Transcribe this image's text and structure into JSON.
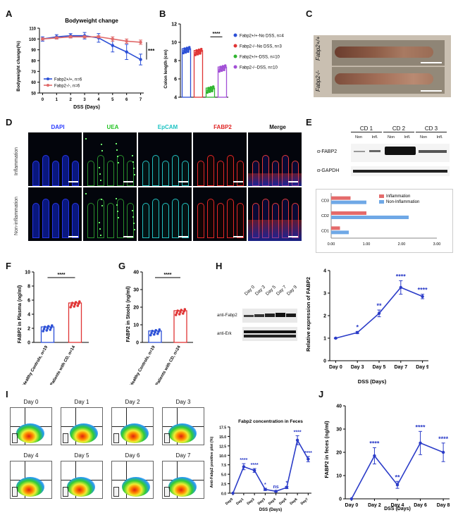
{
  "panels": {
    "A": {
      "label": "A",
      "chart_data": {
        "type": "line",
        "title": "Bodyweight change",
        "xlabel": "DSS (Days)",
        "ylabel": "Bodyweight change(%)",
        "x": [
          0,
          1,
          2,
          3,
          4,
          5,
          6,
          7
        ],
        "ylim": [
          50,
          110
        ],
        "yticks": [
          "50",
          "60",
          "70",
          "80",
          "90",
          "100",
          "110"
        ],
        "xticks": [
          "0",
          "1",
          "2",
          "3",
          "4",
          "5",
          "6",
          "7"
        ],
        "series": [
          {
            "name": "Fabp2+/+, n=6",
            "color": "#2b4fd6",
            "values": [
              100,
              102,
              103,
              103,
              101,
              94,
              88,
              81
            ],
            "err": [
              2,
              2,
              2,
              3,
              4,
              6,
              7,
              5
            ]
          },
          {
            "name": "Fabp2-/-, n=6",
            "color": "#e06a6a",
            "values": [
              100,
              101,
              102,
              102,
              102,
              100,
              98,
              97
            ],
            "err": [
              1,
              1,
              1,
              1,
              1,
              2,
              2,
              2
            ]
          }
        ],
        "sig": "***",
        "legend": [
          "Fabp2+/+, n=6",
          "Fabp2-/-, n=6"
        ]
      }
    },
    "B": {
      "label": "B",
      "chart_data": {
        "type": "bar",
        "ylabel": "Colon length (cm)",
        "ylim": [
          4,
          12
        ],
        "yticks": [
          "4",
          "6",
          "8",
          "10",
          "12"
        ],
        "categories": [
          "Fabp2+/+-No DSS",
          "Fabp2-/--No DSS",
          "Fabp2+/+-DSS",
          "Fabp2-/--DSS"
        ],
        "values": [
          9.3,
          9.1,
          5.0,
          7.3
        ],
        "colors": [
          "#2b4fd6",
          "#e03434",
          "#2fb52f",
          "#a24fd6"
        ],
        "sig": "****",
        "legend": [
          "Fabp2+/+-No DSS, n=4",
          "Fabp2-/--No DSS, n=3",
          "Fabp2+/+-DSS, n=10",
          "Fabp2-/--DSS, n=10"
        ]
      }
    },
    "C": {
      "label": "C",
      "rows": [
        "Fabp2+/+",
        "Fabp2-/-"
      ]
    },
    "D": {
      "label": "D",
      "columns": [
        {
          "name": "DAPI",
          "color": "#2b3cff"
        },
        {
          "name": "UEA",
          "color": "#22c322"
        },
        {
          "name": "EpCAM",
          "color": "#1fc4c4"
        },
        {
          "name": "FABP2",
          "color": "#e02424"
        },
        {
          "name": "Merge",
          "color": "#111111"
        }
      ],
      "rows": [
        "Inflammation",
        "Non-inflammation"
      ]
    },
    "E": {
      "label": "E",
      "groups": [
        "CD 1",
        "CD 2",
        "CD 3"
      ],
      "lanes": [
        "Non",
        "Infl.",
        "Non",
        "Infl.",
        "Non",
        "Infl."
      ],
      "bands": [
        "α-FABP2",
        "α-GAPDH"
      ],
      "chart_data": {
        "type": "bar",
        "orientation": "horizontal",
        "categories": [
          "CD3",
          "CD2",
          "CD1"
        ],
        "series": [
          {
            "name": "Inflammation",
            "color": "#e46b6b",
            "values": [
              0.55,
              1.0,
              0.25
            ]
          },
          {
            "name": "Non-Inflammation",
            "color": "#6fa8e6",
            "values": [
              1.0,
              2.2,
              0.5
            ]
          }
        ],
        "xlim": [
          0,
          3
        ],
        "xticks": [
          "0.00",
          "1.00",
          "2.00",
          "3.00"
        ]
      }
    },
    "F": {
      "label": "F",
      "chart_data": {
        "type": "bar",
        "ylabel": "FABP2 in Plasma (ng/ml)",
        "ylim": [
          0,
          10
        ],
        "yticks": [
          "0",
          "2",
          "4",
          "6",
          "8",
          "10"
        ],
        "categories": [
          "Healthy Controls, n=19",
          "Patients with CD, n=14"
        ],
        "values": [
          2.2,
          5.6
        ],
        "colors": [
          "#2b4fd6",
          "#e03434"
        ],
        "sig": "****"
      }
    },
    "G": {
      "label": "G",
      "chart_data": {
        "type": "bar",
        "ylabel": "FABP2 in Stools (ng/ml)",
        "ylim": [
          0,
          40
        ],
        "yticks": [
          "0",
          "10",
          "20",
          "30",
          "40"
        ],
        "categories": [
          "Healthy Controls, n=19",
          "Patients with CD, n=24"
        ],
        "values": [
          6.5,
          18
        ],
        "colors": [
          "#2b4fd6",
          "#e03434"
        ],
        "sig": "****"
      }
    },
    "H": {
      "label": "H",
      "lanes": [
        "Day 0",
        "Day 3",
        "Day 5",
        "Day 7",
        "Day 9"
      ],
      "bands": [
        "anti-Fabp2",
        "anti-Erk"
      ],
      "chart_data": {
        "type": "line",
        "ylabel": "Relative expression of FABP2",
        "xlabel": "DSS (Days)",
        "categories": [
          "Day 0",
          "Day 3",
          "Day 5",
          "Day 7",
          "Day 9"
        ],
        "values": [
          1.0,
          1.25,
          2.1,
          3.25,
          2.85
        ],
        "err": [
          0.02,
          0.05,
          0.15,
          0.3,
          0.1
        ],
        "ylim": [
          0,
          4
        ],
        "yticks": [
          "0",
          "1",
          "2",
          "3",
          "4"
        ],
        "sig": [
          "",
          "*",
          "**",
          "****",
          "****"
        ],
        "color": "#2b3cc8"
      }
    },
    "I": {
      "label": "I",
      "plots": [
        "Day 0",
        "Day 1",
        "Day 2",
        "Day 3",
        "Day 4",
        "Day 5",
        "Day 6",
        "Day 7"
      ],
      "chart_data": {
        "type": "line",
        "title": "Fabp2 concentration in Feces",
        "ylabel": "Anti-Fabp2 positive plot (%)",
        "xlabel": "DSS (Days)",
        "categories": [
          "Day0",
          "Day1",
          "Day2",
          "Day3",
          "Day4",
          "Day5",
          "Day6",
          "Day7"
        ],
        "values": [
          0,
          7.0,
          6.0,
          1.0,
          0.5,
          1.5,
          14.0,
          9.0
        ],
        "err": [
          0,
          0.8,
          0.5,
          0.3,
          0.2,
          0.3,
          1.2,
          0.7
        ],
        "ylim": [
          0,
          17.5
        ],
        "yticks": [
          "0.0",
          "2.5",
          "5.0",
          "7.5",
          "10.0",
          "12.5",
          "15.0",
          "17.5"
        ],
        "sig": [
          "",
          "****",
          "****",
          "*",
          "ns",
          "*",
          "****",
          "****"
        ],
        "color": "#2b3cc8"
      }
    },
    "J": {
      "label": "J",
      "chart_data": {
        "type": "line",
        "ylabel": "FABP2 in feces (ng/ml)",
        "xlabel": "DSS (Days)",
        "categories": [
          "Day 0",
          "Day 2",
          "Day 4",
          "Day 6",
          "Day 8"
        ],
        "values": [
          0,
          18.5,
          6.0,
          24.0,
          20.0
        ],
        "err": [
          0,
          3.5,
          1.5,
          5.0,
          4.0
        ],
        "ylim": [
          0,
          40
        ],
        "yticks": [
          "0",
          "10",
          "20",
          "30",
          "40"
        ],
        "sig": [
          "",
          "****",
          "**",
          "****",
          "****"
        ],
        "color": "#2b3cc8"
      }
    }
  }
}
